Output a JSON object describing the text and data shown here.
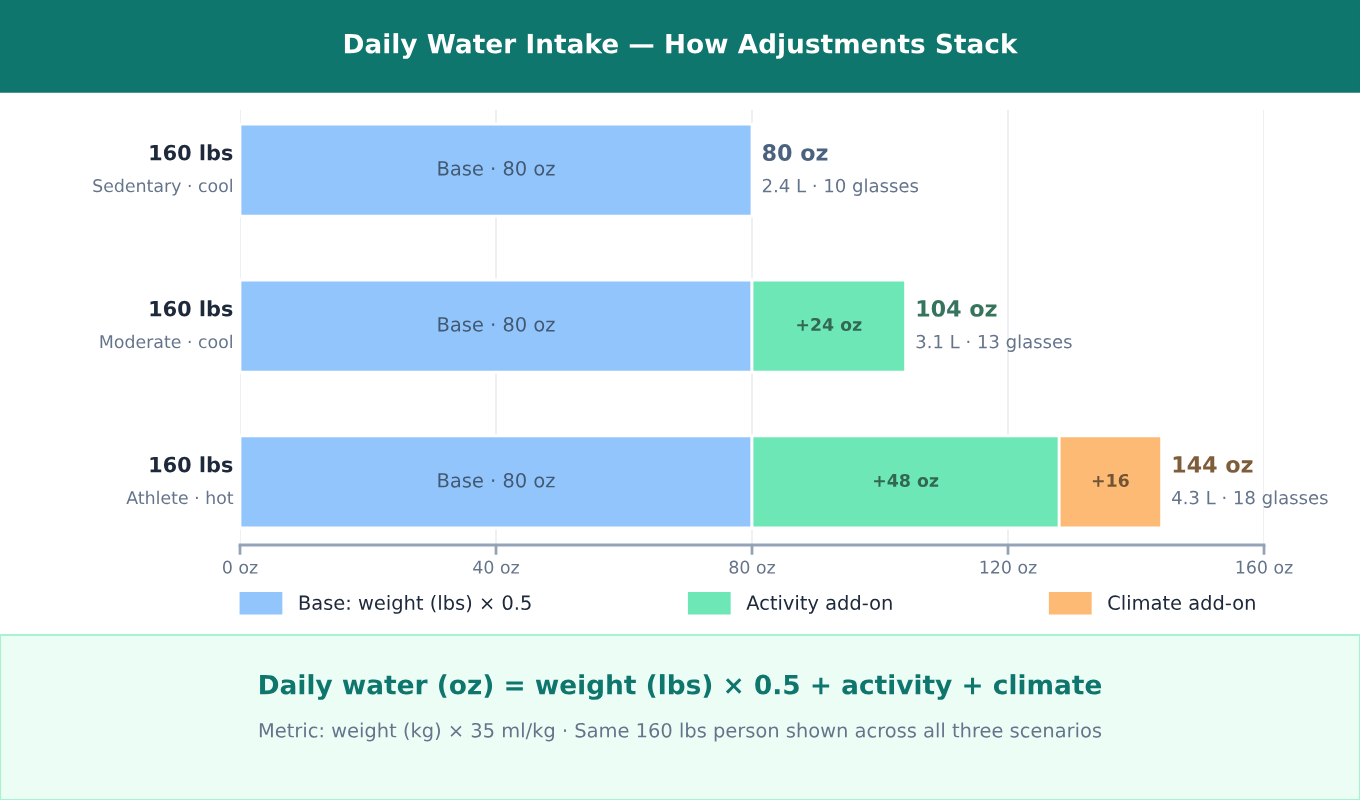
{
  "chart_data": {
    "type": "bar",
    "orientation": "horizontal",
    "stacked": true,
    "title": "Daily Water Intake — How Adjustments Stack",
    "categories": [
      "160 lbs\nSedentary · cool",
      "160 lbs\nModerate · cool",
      "160 lbs\nAthlete · hot"
    ],
    "series": [
      {
        "name": "Base: weight (lbs) × 0.5",
        "color": "#93c5fd",
        "values": [
          80,
          80,
          80
        ],
        "value_labels": [
          "Base · 80 oz",
          "Base · 80 oz",
          "Base · 80 oz"
        ]
      },
      {
        "name": "Activity add-on",
        "color": "#6ee7b7",
        "values": [
          null,
          24,
          48
        ],
        "value_labels": [
          null,
          "+24 oz",
          "+48 oz"
        ]
      },
      {
        "name": "Climate add-on",
        "color": "#fdba74",
        "values": [
          null,
          null,
          16
        ],
        "value_labels": [
          null,
          null,
          "+16"
        ]
      }
    ],
    "totals": [
      "80 oz",
      "104 oz",
      "144 oz"
    ],
    "annotations": [
      {
        "text": "2.4 L · 10 glasses",
        "x": 80,
        "y": "160 lbs\nSedentary · cool"
      },
      {
        "text": "3.1 L · 13 glasses",
        "x": 104,
        "y": "160 lbs\nModerate · cool"
      },
      {
        "text": "4.3 L · 18 glasses",
        "x": 144,
        "y": "160 lbs\nAthlete · hot"
      },
      "Daily water (oz) = weight (lbs) × 0.5 + activity + climate",
      "Metric: weight (kg) × 35 ml/kg · Same 160 lbs person shown across all three scenarios"
    ],
    "xlim": [
      0,
      160
    ],
    "xticks": [
      {
        "value": 0,
        "label": "0 oz"
      },
      {
        "value": 40,
        "label": "40 oz"
      },
      {
        "value": 80,
        "label": "80 oz"
      },
      {
        "value": 120,
        "label": "120 oz"
      },
      {
        "value": 160,
        "label": "160 oz"
      }
    ],
    "grid": "x",
    "legend": "bottom"
  }
}
